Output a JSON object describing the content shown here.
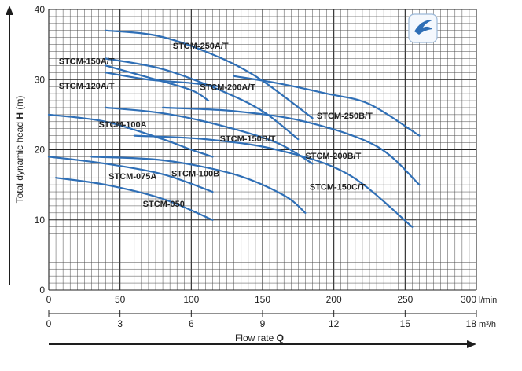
{
  "chart_data": {
    "type": "line",
    "xlabel": "Flow rate",
    "xlabel_symbol": "Q",
    "ylabel": "Total dynamic head",
    "ylabel_symbol": "H",
    "ylabel_unit": "(m)",
    "xlim": [
      0,
      300
    ],
    "ylim": [
      0,
      40
    ],
    "x_ticks": [
      0,
      50,
      100,
      150,
      200,
      250,
      300
    ],
    "x_unit": "l/min",
    "x2_ticks": [
      0,
      3,
      6,
      9,
      12,
      15,
      18
    ],
    "x2_unit": "m³/h",
    "y_ticks": [
      0,
      10,
      20,
      30,
      40
    ],
    "grid": true,
    "accent_color": "#2f6fb6",
    "logo": "swallow-logo-icon",
    "series": [
      {
        "name": "STCM-250A/T",
        "x": [
          40,
          75,
          110,
          145,
          185
        ],
        "y": [
          37,
          36.3,
          34,
          30.5,
          24.5
        ]
      },
      {
        "name": "STCM-250B/T",
        "x": [
          130,
          160,
          195,
          225,
          260
        ],
        "y": [
          30.5,
          29.5,
          28,
          26.5,
          22
        ]
      },
      {
        "name": "STCM-200A/T",
        "x": [
          40,
          80,
          120,
          150,
          175
        ],
        "y": [
          33,
          31.5,
          28.5,
          25.5,
          21.5
        ]
      },
      {
        "name": "STCM-150A/T",
        "x": [
          40,
          70,
          100,
          112
        ],
        "y": [
          32,
          30.3,
          28.5,
          27
        ]
      },
      {
        "name": "STCM-120A/T",
        "x": [
          40,
          70,
          100,
          120
        ],
        "y": [
          31,
          30,
          29.5,
          29
        ]
      },
      {
        "name": "STCM-200B/T",
        "x": [
          80,
          130,
          180,
          230,
          260
        ],
        "y": [
          26,
          25.5,
          24,
          20.5,
          15
        ]
      },
      {
        "name": "STCM-100A",
        "x": [
          0,
          40,
          80,
          100,
          115
        ],
        "y": [
          25,
          24,
          21.5,
          20,
          19
        ]
      },
      {
        "name": "STCM-150B/T",
        "x": [
          40,
          80,
          120,
          160,
          185
        ],
        "y": [
          26,
          25.2,
          23.5,
          21,
          18
        ]
      },
      {
        "name": "STCM-150C/T",
        "x": [
          60,
          110,
          160,
          210,
          255
        ],
        "y": [
          22,
          21.5,
          20,
          16.5,
          9
        ]
      },
      {
        "name": "STCM-100B",
        "x": [
          30,
          80,
          130,
          165,
          180
        ],
        "y": [
          19,
          18.5,
          16.5,
          13.5,
          11
        ]
      },
      {
        "name": "STCM-075A",
        "x": [
          0,
          40,
          80,
          115
        ],
        "y": [
          19,
          18,
          16.5,
          14
        ]
      },
      {
        "name": "STCM-050",
        "x": [
          5,
          40,
          80,
          115
        ],
        "y": [
          16,
          15,
          13,
          10
        ]
      }
    ],
    "curve_labels": [
      {
        "text": "STCM-150A/T",
        "x": 7,
        "y": 32.2
      },
      {
        "text": "STCM-120A/T",
        "x": 7,
        "y": 28.7
      },
      {
        "text": "STCM-250A/T",
        "x": 87,
        "y": 34.4
      },
      {
        "text": "STCM-200A/T",
        "x": 106,
        "y": 28.5
      },
      {
        "text": "STCM-100A",
        "x": 35,
        "y": 23.2
      },
      {
        "text": "STCM-150B/T",
        "x": 120,
        "y": 21.2
      },
      {
        "text": "STCM-250B/T",
        "x": 188,
        "y": 24.4
      },
      {
        "text": "STCM-200B/T",
        "x": 180,
        "y": 18.7
      },
      {
        "text": "STCM-075A",
        "x": 42,
        "y": 15.8
      },
      {
        "text": "STCM-100B",
        "x": 86,
        "y": 16.2
      },
      {
        "text": "STCM-150C/T",
        "x": 183,
        "y": 14.3
      },
      {
        "text": "STCM-050",
        "x": 66,
        "y": 11.9
      }
    ]
  }
}
